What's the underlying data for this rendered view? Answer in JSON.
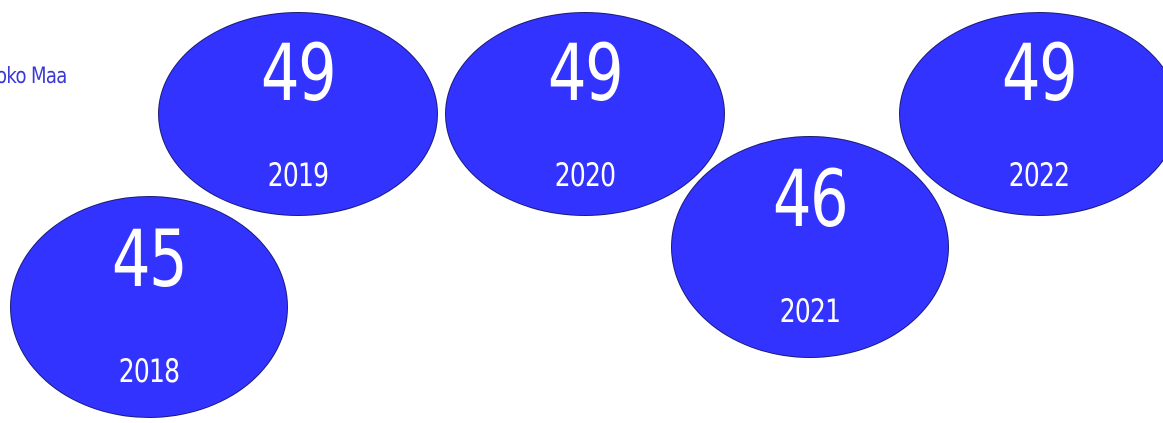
{
  "partial_label": "oko Maa",
  "colors": {
    "bubble_fill": "#3333ff",
    "bubble_stroke": "#1b1b7a",
    "label_text": "#3a39d8",
    "accent": "#6fd6c8"
  },
  "chart_data": {
    "type": "bubble-timeline",
    "categories": [
      "2018",
      "2019",
      "2020",
      "2021",
      "2022"
    ],
    "values": [
      45,
      49,
      49,
      46,
      49
    ],
    "title": "",
    "xlabel": "",
    "ylabel": ""
  }
}
